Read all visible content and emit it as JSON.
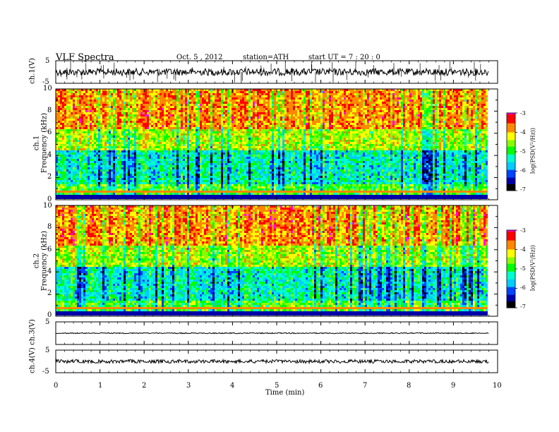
{
  "header": {
    "title": "VLF  Spectra",
    "date": "Oct. 5  , 2012",
    "station": "station=ATH",
    "start": "start  UT  =   7  : 20 : 0"
  },
  "colorbar": {
    "label": "log(PSD(V²/Hz))",
    "ticks": [
      "-3",
      "-4",
      "-5",
      "-6",
      "-7"
    ],
    "colors": [
      "#ff00ff",
      "#ff0000",
      "#ff8800",
      "#ffff00",
      "#88ff00",
      "#00ff00",
      "#00ffcc",
      "#00ccff",
      "#0044ff",
      "#0000aa",
      "#000000"
    ]
  },
  "chart_data": [
    {
      "type": "line",
      "panel": "ch1-waveform",
      "ylabel": "ch.1(V)",
      "ylim": [
        -5,
        5
      ],
      "yticks": [
        "5",
        "-5"
      ],
      "baseline": 0
    },
    {
      "type": "heatmap",
      "panel": "ch1-spectrogram",
      "ylabel": "Frequency  (kHz)",
      "channel_label": "ch.1",
      "ylim": [
        0,
        10
      ],
      "yticks": [
        "0",
        "2",
        "4",
        "6",
        "8",
        "10"
      ],
      "xlim": [
        0,
        9.8
      ]
    },
    {
      "type": "heatmap",
      "panel": "ch2-spectrogram",
      "ylabel": "Frequency  (kHz)",
      "channel_label": "ch.2",
      "ylim": [
        0,
        10
      ],
      "yticks": [
        "0",
        "2",
        "4",
        "6",
        "8",
        "10"
      ],
      "xlim": [
        0,
        9.8
      ]
    },
    {
      "type": "line",
      "panel": "ch3-waveform",
      "ylabel": "ch.3(V)",
      "ylim": [
        -5,
        5
      ],
      "yticks": [
        "5"
      ],
      "baseline": 0
    },
    {
      "type": "line",
      "panel": "ch4-waveform",
      "ylabel": "ch.4(V)",
      "ylim": [
        -5,
        5
      ],
      "yticks": [
        "5",
        "-5"
      ],
      "baseline": 0
    }
  ],
  "xaxis": {
    "label": "Time  (min)",
    "xlim": [
      0,
      10
    ],
    "ticks": [
      "0",
      "1",
      "2",
      "3",
      "4",
      "5",
      "6",
      "7",
      "8",
      "9",
      "10"
    ]
  }
}
